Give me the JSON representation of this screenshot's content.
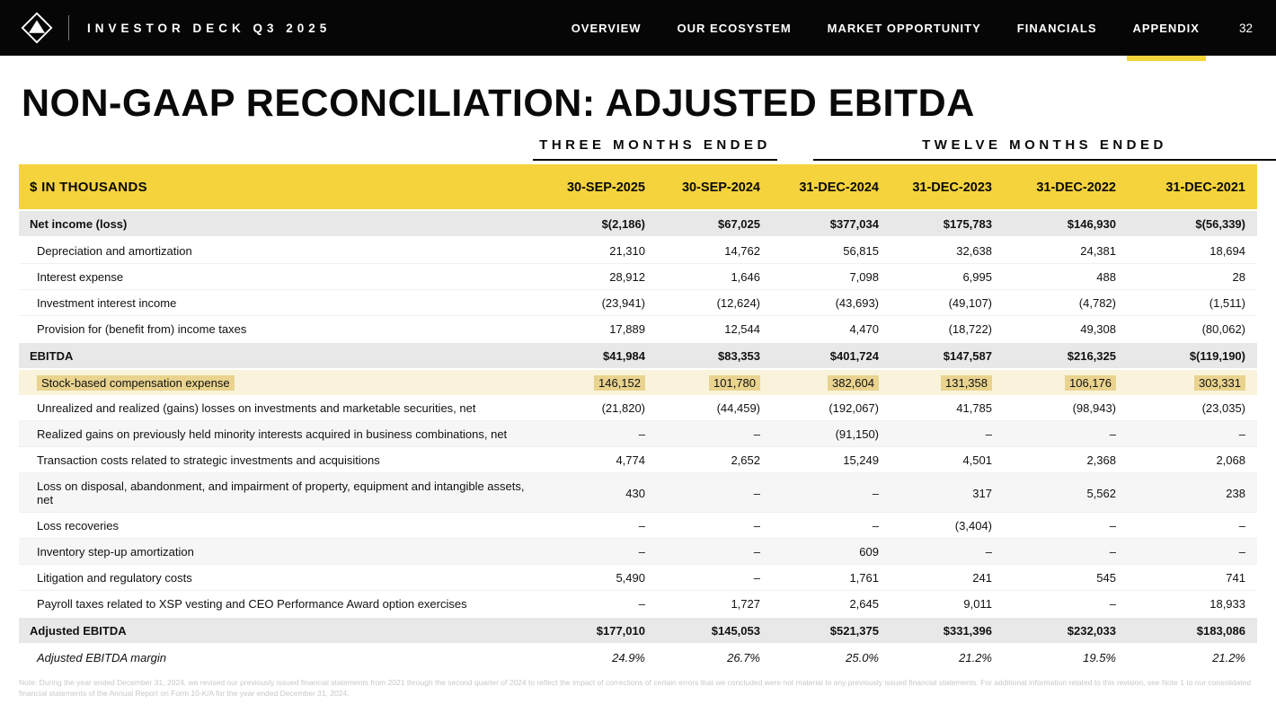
{
  "theme": {
    "accent": "#F5D33D",
    "highlight": "#E9D38F",
    "highlight_row_bg": "#FAF3DB",
    "total_row_bg": "#E8E8E8",
    "nav_bg": "#060606"
  },
  "navbar": {
    "logo_icon": "pyramid-diamond-logo-icon",
    "brand": "INVESTOR DECK Q3 2025",
    "items": [
      {
        "label": "OVERVIEW",
        "active": false
      },
      {
        "label": "OUR ECOSYSTEM",
        "active": false
      },
      {
        "label": "MARKET OPPORTUNITY",
        "active": false
      },
      {
        "label": "FINANCIALS",
        "active": false
      },
      {
        "label": "APPENDIX",
        "active": true
      }
    ],
    "page_number": "32"
  },
  "slide": {
    "title": "NON-GAAP RECONCILIATION: ADJUSTED EBITDA",
    "group_headers": [
      {
        "label": "THREE MONTHS ENDED",
        "col_span": 2
      },
      {
        "label": "TWELVE MONTHS ENDED",
        "col_span": 4
      }
    ],
    "table": {
      "unit_label": "$ IN THOUSANDS",
      "columns": [
        "30-SEP-2025",
        "30-SEP-2024",
        "31-DEC-2024",
        "31-DEC-2023",
        "31-DEC-2022",
        "31-DEC-2021"
      ],
      "rows": [
        {
          "label": "Net income (loss)",
          "kind": "total",
          "values": [
            "$(2,186)",
            "$67,025",
            "$377,034",
            "$175,783",
            "$146,930",
            "$(56,339)"
          ]
        },
        {
          "label": "Depreciation and amortization",
          "kind": "item",
          "values": [
            "21,310",
            "14,762",
            "56,815",
            "32,638",
            "24,381",
            "18,694"
          ]
        },
        {
          "label": "Interest expense",
          "kind": "item",
          "values": [
            "28,912",
            "1,646",
            "7,098",
            "6,995",
            "488",
            "28"
          ]
        },
        {
          "label": "Investment interest income",
          "kind": "item",
          "values": [
            "(23,941)",
            "(12,624)",
            "(43,693)",
            "(49,107)",
            "(4,782)",
            "(1,511)"
          ]
        },
        {
          "label": "Provision for (benefit from) income taxes",
          "kind": "item",
          "values": [
            "17,889",
            "12,544",
            "4,470",
            "(18,722)",
            "49,308",
            "(80,062)"
          ]
        },
        {
          "label": "EBITDA",
          "kind": "total",
          "values": [
            "$41,984",
            "$83,353",
            "$401,724",
            "$147,587",
            "$216,325",
            "$(119,190)"
          ]
        },
        {
          "label": "Stock-based compensation expense",
          "kind": "highlight",
          "values": [
            "146,152",
            "101,780",
            "382,604",
            "131,358",
            "106,176",
            "303,331"
          ]
        },
        {
          "label": "Unrealized and realized (gains) losses on investments and marketable securities, net",
          "kind": "item",
          "values": [
            "(21,820)",
            "(44,459)",
            "(192,067)",
            "41,785",
            "(98,943)",
            "(23,035)"
          ]
        },
        {
          "label": "Realized gains on previously held minority interests acquired in business combinations, net",
          "kind": "item-shaded",
          "values": [
            "–",
            "–",
            "(91,150)",
            "–",
            "–",
            "–"
          ]
        },
        {
          "label": "Transaction costs related to strategic investments and acquisitions",
          "kind": "item",
          "values": [
            "4,774",
            "2,652",
            "15,249",
            "4,501",
            "2,368",
            "2,068"
          ]
        },
        {
          "label": "Loss on disposal, abandonment, and impairment of property, equipment and intangible assets, net",
          "kind": "item-shaded",
          "values": [
            "430",
            "–",
            "–",
            "317",
            "5,562",
            "238"
          ]
        },
        {
          "label": "Loss recoveries",
          "kind": "item",
          "values": [
            "–",
            "–",
            "–",
            "(3,404)",
            "–",
            "–"
          ]
        },
        {
          "label": "Inventory step-up amortization",
          "kind": "item-shaded",
          "values": [
            "–",
            "–",
            "609",
            "–",
            "–",
            "–"
          ]
        },
        {
          "label": "Litigation and regulatory costs",
          "kind": "item",
          "values": [
            "5,490",
            "–",
            "1,761",
            "241",
            "545",
            "741"
          ]
        },
        {
          "label": "Payroll taxes related to XSP vesting and CEO Performance Award option exercises",
          "kind": "item",
          "values": [
            "–",
            "1,727",
            "2,645",
            "9,011",
            "–",
            "18,933"
          ]
        },
        {
          "label": "Adjusted EBITDA",
          "kind": "total",
          "values": [
            "$177,010",
            "$145,053",
            "$521,375",
            "$331,396",
            "$232,033",
            "$183,086"
          ]
        },
        {
          "label": "Adjusted EBITDA margin",
          "kind": "margin",
          "values": [
            "24.9%",
            "26.7%",
            "25.0%",
            "21.2%",
            "19.5%",
            "21.2%"
          ]
        }
      ]
    },
    "footnote": "Note: During the year ended December 31, 2024, we revised our previously issued financial statements from 2021 through the second quarter of 2024 to reflect the impact of corrections of certain errors that we concluded were not material to any previously issued financial statements. For additional information related to this revision, see Note 1 to our consolidated financial statements of the Annual Report on Form 10-K/A for the year ended December 31, 2024."
  }
}
